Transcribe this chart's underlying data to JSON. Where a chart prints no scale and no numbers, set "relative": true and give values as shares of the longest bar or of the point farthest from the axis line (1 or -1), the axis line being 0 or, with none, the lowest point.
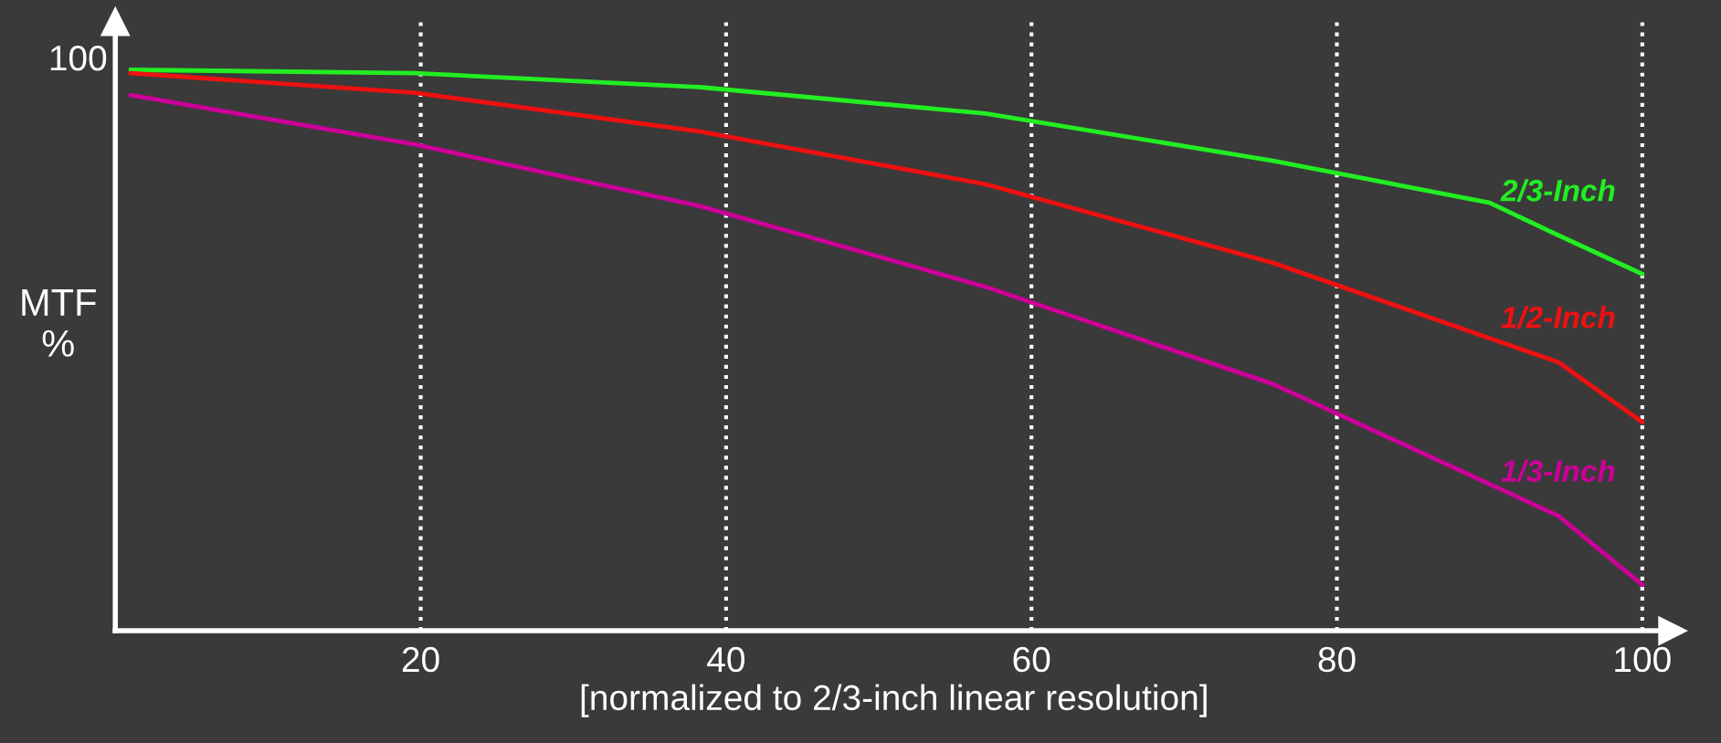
{
  "chart_data": {
    "type": "line",
    "relative": true,
    "xlabel": "[normalized to 2/3-inch linear resolution]",
    "ylabel": "MTF\n%",
    "annotations": [
      "100"
    ],
    "xlim": [
      0,
      102
    ],
    "xticks": [
      20,
      40,
      60,
      80,
      100
    ],
    "grid": "x",
    "line_style": "solid",
    "series": [
      {
        "name": "2/3-Inch",
        "color": "#22ee22",
        "x": [
          1,
          19.6,
          38.3,
          57.0,
          75.8,
          90.0,
          94.5,
          100
        ],
        "values": [
          1.0,
          0.994,
          0.969,
          0.922,
          0.838,
          0.763,
          0.705,
          0.636
        ]
      },
      {
        "name": "1/2-Inch",
        "color": "#ee1111",
        "x": [
          1,
          19.6,
          38.3,
          57.0,
          75.8,
          94.5,
          100
        ],
        "values": [
          0.994,
          0.959,
          0.89,
          0.796,
          0.656,
          0.479,
          0.372
        ]
      },
      {
        "name": "1/3-Inch",
        "color": "#cc0099",
        "x": [
          1,
          19.6,
          38.3,
          57.0,
          75.8,
          94.5,
          100
        ],
        "values": [
          0.955,
          0.867,
          0.757,
          0.613,
          0.44,
          0.205,
          0.082
        ]
      }
    ]
  }
}
